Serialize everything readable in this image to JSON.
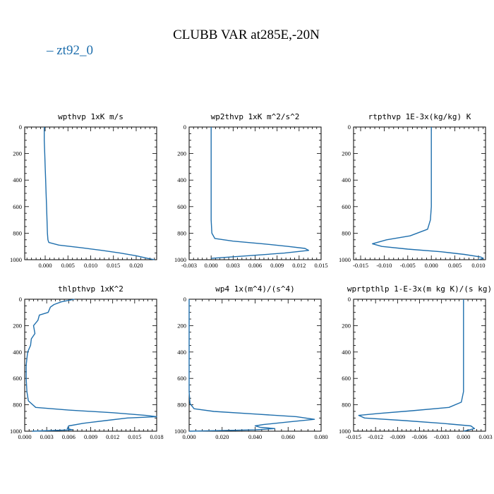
{
  "figure": {
    "title": "CLUBB VAR at285E,-20N",
    "legend": "– zt92_0",
    "color": "#1f6fad"
  },
  "chart_data": [
    {
      "type": "line",
      "title": "wpthvp   1xK m/s",
      "xlim": [
        -0.0045,
        0.0245
      ],
      "ylim": [
        1000,
        0
      ],
      "xticks": [
        0.0,
        0.005,
        0.01,
        0.015,
        0.02
      ],
      "xtick_labels": [
        "0.000",
        "0.005",
        "0.010",
        "0.015",
        "0.020"
      ],
      "yticks": [
        0,
        200,
        400,
        600,
        800,
        1000
      ],
      "series": [
        {
          "x": [
            -0.0002,
            -0.0002,
            -0.0001,
            0.0,
            0.0001,
            0.0002,
            0.0003,
            0.0004,
            0.0005,
            0.0006,
            0.0008,
            0.003,
            0.008,
            0.0125,
            0.0165,
            0.02,
            0.0225,
            0.024
          ],
          "y": [
            0,
            100,
            200,
            300,
            400,
            500,
            600,
            700,
            800,
            850,
            870,
            890,
            910,
            930,
            950,
            970,
            990,
            1000
          ]
        }
      ]
    },
    {
      "type": "line",
      "title": "wp2thvp   1xK m^2/s^2",
      "xlim": [
        -0.003,
        0.015
      ],
      "ylim": [
        1000,
        0
      ],
      "xticks": [
        -0.003,
        0.0,
        0.003,
        0.006,
        0.009,
        0.012,
        0.015
      ],
      "xtick_labels": [
        "-0.003",
        "0.000",
        "0.003",
        "0.006",
        "0.009",
        "0.012",
        "0.015"
      ],
      "yticks": [
        0,
        200,
        400,
        600,
        800,
        1000
      ],
      "series": [
        {
          "x": [
            0.0,
            0.0,
            0.0,
            0.0,
            0.0,
            0.0,
            0.0,
            0.0,
            0.0001,
            0.0005,
            0.003,
            0.007,
            0.0105,
            0.0128,
            0.0133,
            0.01,
            0.005,
            0.0
          ],
          "y": [
            0,
            100,
            200,
            300,
            400,
            500,
            600,
            700,
            800,
            840,
            860,
            880,
            900,
            915,
            930,
            950,
            970,
            990
          ]
        }
      ]
    },
    {
      "type": "line",
      "title": "rtpthvp   1E-3x(kg/kg) K",
      "xlim": [
        -0.0165,
        0.0115
      ],
      "ylim": [
        1000,
        0
      ],
      "xticks": [
        -0.015,
        -0.01,
        -0.005,
        0.0,
        0.005,
        0.01
      ],
      "xtick_labels": [
        "-0.015",
        "-0.010",
        "-0.005",
        "0.000",
        "0.005",
        "0.010"
      ],
      "yticks": [
        0,
        200,
        400,
        600,
        800,
        1000
      ],
      "series": [
        {
          "x": [
            0.0,
            0.0,
            0.0,
            0.0,
            0.0,
            0.0,
            0.0,
            -0.0002,
            -0.0008,
            -0.0045,
            -0.0095,
            -0.0125,
            -0.0105,
            -0.005,
            0.002,
            0.007,
            0.0105,
            0.011,
            0.01
          ],
          "y": [
            0,
            100,
            200,
            300,
            400,
            500,
            600,
            700,
            770,
            820,
            850,
            880,
            900,
            920,
            940,
            960,
            980,
            990,
            1000
          ]
        }
      ]
    },
    {
      "type": "line",
      "title": "thlpthvp   1xK^2",
      "xlim": [
        0.0,
        0.018
      ],
      "ylim": [
        1000,
        0
      ],
      "xticks": [
        0.0,
        0.003,
        0.006,
        0.009,
        0.012,
        0.015,
        0.018
      ],
      "xtick_labels": [
        "0.000",
        "0.003",
        "0.006",
        "0.009",
        "0.012",
        "0.015",
        "0.018"
      ],
      "yticks": [
        0,
        200,
        400,
        600,
        800,
        1000
      ],
      "series": [
        {
          "x": [
            0.0068,
            0.005,
            0.004,
            0.0035,
            0.0032,
            0.002,
            0.0018,
            0.0012,
            0.0014,
            0.0009,
            0.0008,
            0.0004,
            0.0003,
            0.0002,
            0.0002,
            0.0003,
            0.0005,
            0.0015,
            0.006,
            0.012,
            0.0165,
            0.018,
            0.014,
            0.011,
            0.008,
            0.006,
            0.0058,
            0.0065,
            0.001
          ],
          "y": [
            0,
            20,
            40,
            60,
            100,
            120,
            160,
            200,
            260,
            300,
            350,
            400,
            450,
            500,
            600,
            700,
            770,
            820,
            840,
            860,
            880,
            890,
            900,
            920,
            940,
            960,
            980,
            990,
            1000
          ]
        }
      ]
    },
    {
      "type": "line",
      "title": "wp4   1x(m^4)/(s^4)",
      "xlim": [
        0.0,
        0.08
      ],
      "ylim": [
        1000,
        0
      ],
      "xticks": [
        0.0,
        0.02,
        0.04,
        0.06,
        0.08
      ],
      "xtick_labels": [
        "0.000",
        "0.020",
        "0.040",
        "0.060",
        "0.080"
      ],
      "yticks": [
        0,
        200,
        400,
        600,
        800,
        1000
      ],
      "series": [
        {
          "x": [
            0.0,
            0.0,
            0.0,
            0.0,
            0.0,
            0.0,
            0.0,
            0.0,
            0.0005,
            0.003,
            0.015,
            0.04,
            0.065,
            0.076,
            0.06,
            0.045,
            0.04,
            0.043,
            0.052,
            0.04,
            0.02,
            0.0
          ],
          "y": [
            0,
            100,
            200,
            300,
            400,
            500,
            600,
            700,
            790,
            830,
            850,
            870,
            890,
            910,
            930,
            950,
            960,
            970,
            980,
            990,
            995,
            1000
          ]
        }
      ]
    },
    {
      "type": "line",
      "title": "wprtpthlp   1-E-3x(m kg K)/(s kg)",
      "xlim": [
        -0.015,
        0.003
      ],
      "ylim": [
        1000,
        0
      ],
      "xticks": [
        -0.015,
        -0.012,
        -0.009,
        -0.006,
        -0.003,
        0.0,
        0.003
      ],
      "xtick_labels": [
        "-0.015",
        "-0.012",
        "-0.009",
        "-0.006",
        "-0.003",
        "0.000",
        "0.003"
      ],
      "yticks": [
        0,
        200,
        400,
        600,
        800,
        1000
      ],
      "series": [
        {
          "x": [
            0.0,
            0.0,
            0.0,
            0.0,
            0.0,
            0.0,
            0.0,
            0.0,
            -0.0003,
            -0.002,
            -0.007,
            -0.0115,
            -0.0143,
            -0.0135,
            -0.008,
            -0.003,
            0.001,
            0.0015,
            0.0
          ],
          "y": [
            0,
            100,
            200,
            300,
            400,
            500,
            600,
            700,
            780,
            820,
            845,
            865,
            880,
            900,
            920,
            940,
            960,
            980,
            1000
          ]
        }
      ]
    }
  ]
}
